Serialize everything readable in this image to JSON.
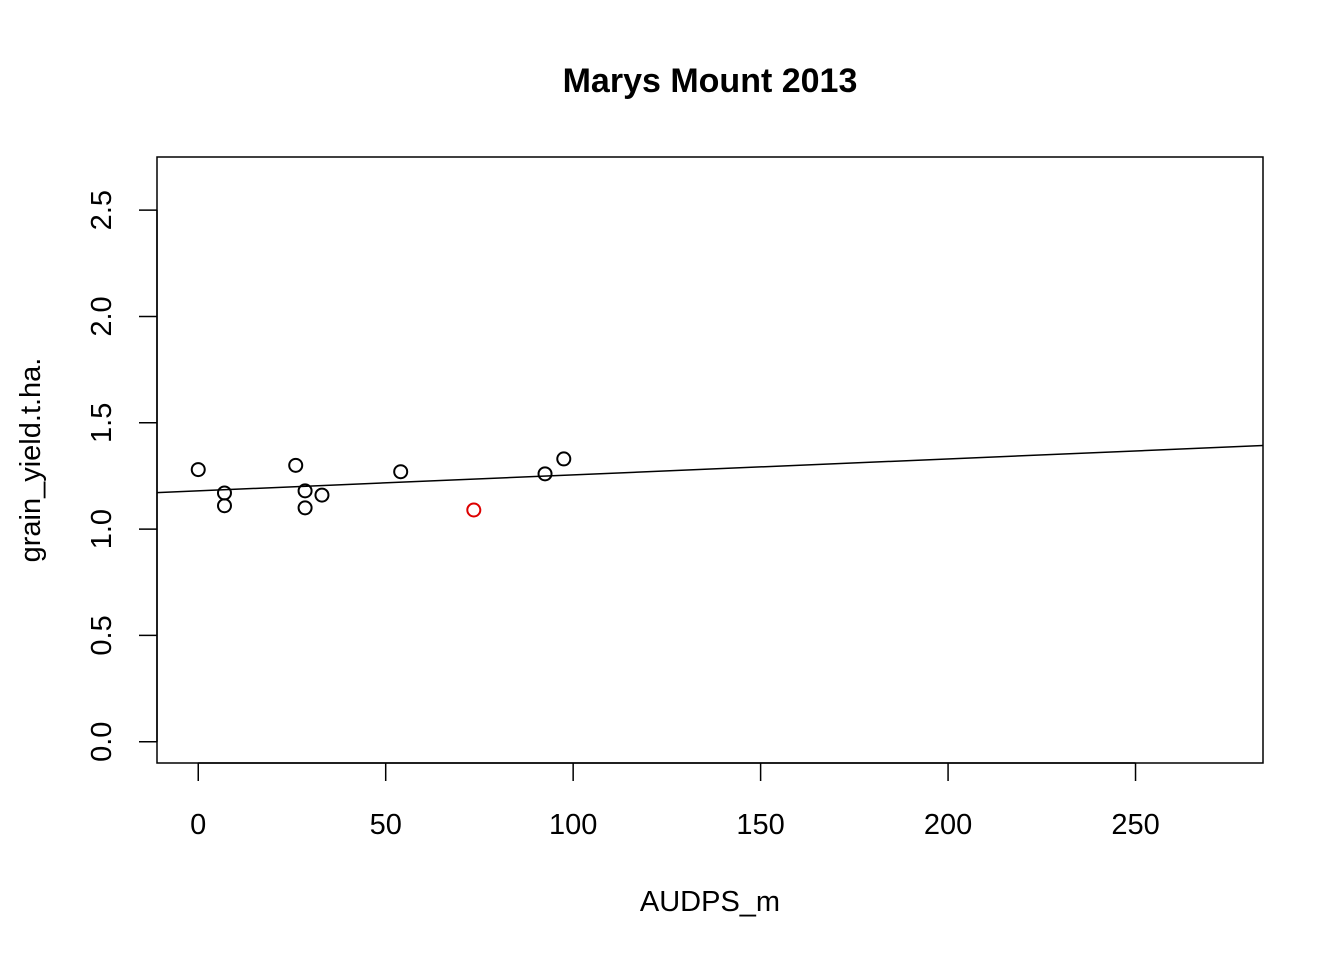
{
  "chart_data": {
    "type": "scatter",
    "title": "Marys Mount 2013",
    "xlabel": "AUDPS_m",
    "ylabel": "grain_yield.t.ha.",
    "xlim": [
      -11,
      284
    ],
    "ylim": [
      -0.1,
      2.75
    ],
    "xticks": [
      0,
      50,
      100,
      150,
      200,
      250
    ],
    "yticks": [
      0.0,
      0.5,
      1.0,
      1.5,
      2.0,
      2.5
    ],
    "xtick_labels": [
      "0",
      "50",
      "100",
      "150",
      "200",
      "250"
    ],
    "ytick_labels": [
      "0.0",
      "0.5",
      "1.0",
      "1.5",
      "2.0",
      "2.5"
    ],
    "grid": false,
    "points": [
      {
        "x": 0,
        "y": 1.28,
        "color": "#000000"
      },
      {
        "x": 7,
        "y": 1.17,
        "color": "#000000"
      },
      {
        "x": 7,
        "y": 1.11,
        "color": "#000000"
      },
      {
        "x": 26,
        "y": 1.3,
        "color": "#000000"
      },
      {
        "x": 28.5,
        "y": 1.18,
        "color": "#000000"
      },
      {
        "x": 28.5,
        "y": 1.1,
        "color": "#000000"
      },
      {
        "x": 33,
        "y": 1.16,
        "color": "#000000"
      },
      {
        "x": 54,
        "y": 1.27,
        "color": "#000000"
      },
      {
        "x": 73.5,
        "y": 1.09,
        "color": "#dd0000"
      },
      {
        "x": 92.5,
        "y": 1.26,
        "color": "#000000"
      },
      {
        "x": 97.5,
        "y": 1.33,
        "color": "#000000"
      }
    ],
    "fit_line": {
      "intercept": 1.18,
      "slope": 0.00075,
      "color": "#000000"
    }
  }
}
